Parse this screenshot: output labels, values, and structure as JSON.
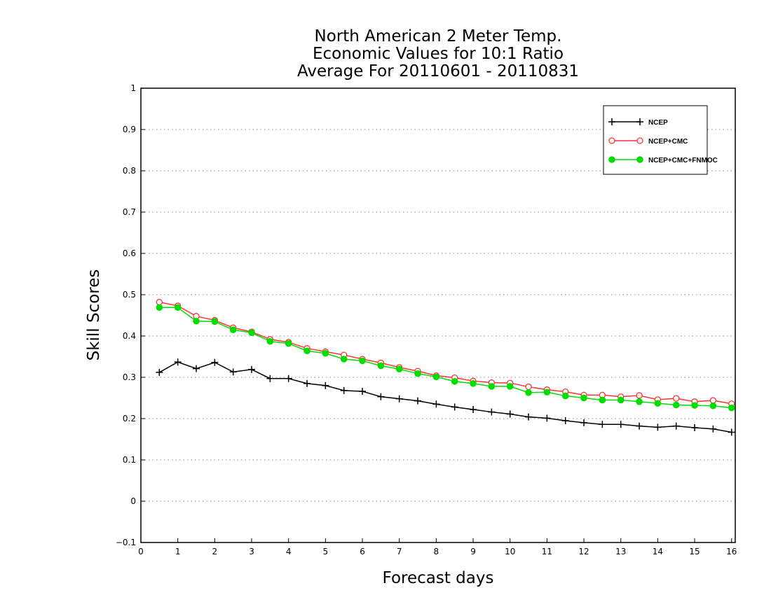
{
  "chart_data": {
    "type": "line",
    "title": [
      "North American 2 Meter Temp.",
      "Economic Values for 10:1 Ratio",
      "Average For 20110601 - 20110831"
    ],
    "xlabel": "Forecast days",
    "ylabel": "Skill Scores",
    "xlim": [
      0,
      16.1
    ],
    "ylim": [
      -0.1,
      1
    ],
    "xticks": [
      "0",
      "1",
      "2",
      "3",
      "4",
      "5",
      "6",
      "7",
      "8",
      "9",
      "10",
      "11",
      "12",
      "13",
      "14",
      "15",
      "16"
    ],
    "yticks": [
      "−0.1",
      "0",
      "0.1",
      "0.2",
      "0.3",
      "0.4",
      "0.5",
      "0.6",
      "0.7",
      "0.8",
      "0.9",
      "1"
    ],
    "ytick_values": [
      -0.1,
      0,
      0.1,
      0.2,
      0.3,
      0.4,
      0.5,
      0.6,
      0.7,
      0.8,
      0.9,
      1
    ],
    "grid": "horizontal dotted",
    "legend_position": "top-right",
    "x": [
      0.5,
      1,
      1.5,
      2,
      2.5,
      3,
      3.5,
      4,
      4.5,
      5,
      5.5,
      6,
      6.5,
      7,
      7.5,
      8,
      8.5,
      9,
      9.5,
      10,
      10.5,
      11,
      11.5,
      12,
      12.5,
      13,
      13.5,
      14,
      14.5,
      15,
      15.5,
      16
    ],
    "series": [
      {
        "name": "NCEP",
        "color": "#000000",
        "marker": "plus",
        "values": [
          0.312,
          0.337,
          0.321,
          0.336,
          0.313,
          0.319,
          0.297,
          0.297,
          0.285,
          0.28,
          0.268,
          0.266,
          0.253,
          0.248,
          0.243,
          0.235,
          0.228,
          0.222,
          0.216,
          0.211,
          0.204,
          0.201,
          0.195,
          0.19,
          0.186,
          0.186,
          0.182,
          0.179,
          0.182,
          0.178,
          0.175,
          0.167
        ]
      },
      {
        "name": "NCEP+CMC",
        "color": "#ff3333",
        "marker": "open-circle",
        "values": [
          0.482,
          0.473,
          0.448,
          0.438,
          0.42,
          0.41,
          0.392,
          0.385,
          0.37,
          0.362,
          0.354,
          0.344,
          0.335,
          0.324,
          0.315,
          0.304,
          0.299,
          0.291,
          0.287,
          0.286,
          0.277,
          0.27,
          0.265,
          0.257,
          0.257,
          0.253,
          0.256,
          0.246,
          0.249,
          0.241,
          0.244,
          0.236
        ]
      },
      {
        "name": "NCEP+CMC+FNMOC",
        "color": "#00dd00",
        "marker": "filled-circle",
        "values": [
          0.469,
          0.469,
          0.436,
          0.435,
          0.415,
          0.408,
          0.387,
          0.382,
          0.364,
          0.358,
          0.344,
          0.34,
          0.328,
          0.32,
          0.309,
          0.301,
          0.29,
          0.285,
          0.278,
          0.278,
          0.263,
          0.264,
          0.255,
          0.25,
          0.245,
          0.245,
          0.241,
          0.237,
          0.233,
          0.232,
          0.231,
          0.226
        ]
      }
    ]
  }
}
